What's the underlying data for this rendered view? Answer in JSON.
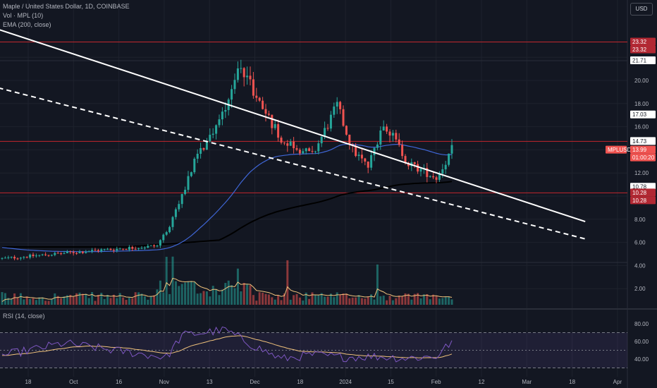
{
  "header": {
    "symbol_line": "Maple / United States Dollar, 1D, COINBASE",
    "vol_label": "Vol · MPL (10)",
    "ema_label": "EMA (200, close)",
    "currency": "USD",
    "rsi_label": "RSI (14, close)"
  },
  "chart_data": {
    "type": "candlestick",
    "title": "Maple / United States Dollar, 1D, COINBASE",
    "price_axis": {
      "ticks": [
        2.0,
        4.0,
        6.0,
        8.0,
        10.0,
        12.0,
        14.0,
        16.0,
        18.0,
        20.0,
        22.0
      ],
      "labels": [
        "2.00",
        "4.00",
        "6.00",
        "8.00",
        "",
        "12.00",
        "",
        "16.00",
        "18.00",
        "20.00",
        ""
      ]
    },
    "rsi_axis": {
      "ticks": [
        40,
        60,
        80
      ],
      "labels": [
        "40.00",
        "60.00",
        "80.00"
      ],
      "band": [
        30,
        70
      ]
    },
    "time_axis": {
      "labels": [
        "18",
        "Oct",
        "16",
        "Nov",
        "13",
        "Dec",
        "18",
        "2024",
        "15",
        "Feb",
        "12",
        "Mar",
        "18",
        "Apr"
      ]
    },
    "price_badges": [
      {
        "label": "23.32",
        "price": 23.32,
        "style": "red"
      },
      {
        "label": "23.32",
        "price": 23.32,
        "style": "red"
      },
      {
        "label": "21.71",
        "price": 21.71,
        "style": "white"
      },
      {
        "label": "17.03",
        "price": 17.03,
        "style": "white"
      },
      {
        "label": "14.73",
        "price": 14.73,
        "style": "white"
      },
      {
        "label": "MPLUSD",
        "price": 13.99,
        "style": "ticker"
      },
      {
        "label": "13.99",
        "price": 13.99,
        "style": "current"
      },
      {
        "label": "01:00:20",
        "price": 13.99,
        "style": "countdown"
      },
      {
        "label": "10.78",
        "price": 10.78,
        "style": "white"
      },
      {
        "label": "10.28",
        "price": 10.28,
        "style": "red"
      },
      {
        "label": "10.28",
        "price": 10.28,
        "style": "red"
      }
    ],
    "horizontal_levels": [
      23.32,
      14.73,
      10.28
    ],
    "trendlines": [
      {
        "style": "solid",
        "from_day": -25,
        "from_price": 26.5,
        "to_day": 188,
        "to_price": 7.8
      },
      {
        "style": "dashed",
        "from_day": -25,
        "from_price": 21.0,
        "to_day": 188,
        "to_price": 6.3
      }
    ],
    "anchors": {
      "days": [
        0,
        30,
        50,
        55,
        62,
        70,
        77,
        82,
        90,
        100,
        108,
        113,
        118,
        123,
        131,
        140,
        141,
        145
      ],
      "prices": [
        4.6,
        5.3,
        5.7,
        8.0,
        13.0,
        16.5,
        21.5,
        18.5,
        15.0,
        13.5,
        17.8,
        14.0,
        12.5,
        16.5,
        12.8,
        11.6,
        12.0,
        14.0
      ]
    },
    "rsi_anchors": {
      "days": [
        0,
        20,
        40,
        53,
        58,
        65,
        72,
        80,
        90,
        100,
        110,
        120,
        130,
        140,
        145
      ],
      "values": [
        44,
        58,
        48,
        42,
        67,
        70,
        73,
        57,
        40,
        45,
        42,
        43,
        41,
        43,
        60
      ]
    },
    "series": [
      {
        "name": "MPLUSD",
        "kind": "candles",
        "up_color": "#26a69a",
        "down_color": "#ef5350"
      },
      {
        "name": "EMA (200, close)",
        "kind": "line",
        "color": "#000000"
      },
      {
        "name": "MA (blue)",
        "kind": "line",
        "color": "#3f66d6"
      },
      {
        "name": "Vol · MPL (10)",
        "kind": "histogram"
      },
      {
        "name": "RSI (14, close)",
        "kind": "oscillator",
        "color": "#7e57c2"
      }
    ]
  }
}
